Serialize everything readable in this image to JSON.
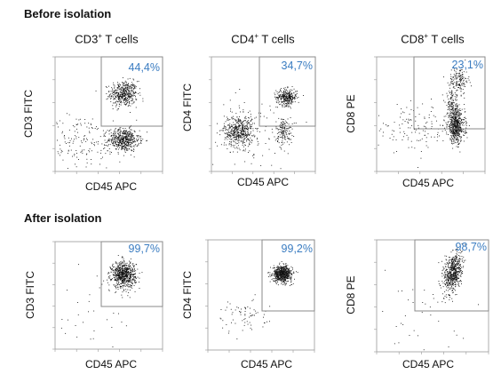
{
  "sections": {
    "before_title": "Before isolation",
    "after_title": "After isolation"
  },
  "columns": [
    {
      "base": "CD3",
      "sup": "+",
      "rest": " T cells"
    },
    {
      "base": "CD4",
      "sup": "+",
      "rest": " T cells"
    },
    {
      "base": "CD8",
      "sup": "+",
      "rest": " T cells"
    }
  ],
  "colors": {
    "dots": "#111111",
    "gate": "#8a8a8a",
    "percent": "#3a7cc1",
    "frame": "#999999"
  },
  "chart_data": [
    {
      "type": "scatter",
      "row": "before",
      "column": "CD3+ T cells",
      "xlabel": "CD45 APC",
      "ylabel": "CD3 FITC",
      "x_scale": "log",
      "y_scale": "log",
      "gate_percent": "44,4%",
      "populations": [
        {
          "x": 1500,
          "y": 2500,
          "spread_x": 0.32,
          "spread_y": 0.28,
          "count": 450
        },
        {
          "x": 1500,
          "y": 25,
          "spread_x": 0.36,
          "spread_y": 0.25,
          "count": 520
        },
        {
          "x": 12,
          "y": 20,
          "spread_x": 0.9,
          "spread_y": 0.6,
          "count": 160
        }
      ]
    },
    {
      "type": "scatter",
      "row": "before",
      "column": "CD4+ T cells",
      "xlabel": "CD45 APC",
      "ylabel": "CD4 FITC",
      "x_scale": "log",
      "y_scale": "log",
      "gate_percent": "34,7%",
      "populations": [
        {
          "x": 4000,
          "y": 1800,
          "spread_x": 0.25,
          "spread_y": 0.18,
          "count": 320
        },
        {
          "x": 20,
          "y": 60,
          "spread_x": 0.35,
          "spread_y": 0.35,
          "count": 480
        },
        {
          "x": 3000,
          "y": 60,
          "spread_x": 0.2,
          "spread_y": 0.3,
          "count": 150
        },
        {
          "x": 60,
          "y": 50,
          "spread_x": 1.0,
          "spread_y": 0.8,
          "count": 90
        }
      ]
    },
    {
      "type": "scatter",
      "row": "before",
      "column": "CD8+ T cells",
      "xlabel": "CD45 APC",
      "ylabel": "CD8 PE",
      "x_scale": "log",
      "y_scale": "log",
      "gate_percent": "23,1%",
      "populations": [
        {
          "x": 6000,
          "y": 10000,
          "spread_x": 0.22,
          "spread_y": 0.3,
          "count": 160
        },
        {
          "x": 4500,
          "y": 90,
          "spread_x": 0.2,
          "spread_y": 0.35,
          "count": 520
        },
        {
          "x": 3000,
          "y": 600,
          "spread_x": 0.15,
          "spread_y": 0.35,
          "count": 160
        },
        {
          "x": 50,
          "y": 80,
          "spread_x": 0.9,
          "spread_y": 0.5,
          "count": 130
        }
      ]
    },
    {
      "type": "scatter",
      "row": "after",
      "column": "CD3+ T cells",
      "xlabel": "CD45 APC",
      "ylabel": "CD3 FITC",
      "x_scale": "log",
      "y_scale": "log",
      "gate_percent": "99,7%",
      "populations": [
        {
          "x": 1500,
          "y": 3000,
          "spread_x": 0.28,
          "spread_y": 0.3,
          "count": 700
        },
        {
          "x": 50,
          "y": 30,
          "spread_x": 1.0,
          "spread_y": 0.9,
          "count": 30
        }
      ]
    },
    {
      "type": "scatter",
      "row": "after",
      "column": "CD4+ T cells",
      "xlabel": "CD45 APC",
      "ylabel": "CD4 FITC",
      "x_scale": "log",
      "y_scale": "log",
      "gate_percent": "99,2%",
      "populations": [
        {
          "x": 3000,
          "y": 3000,
          "spread_x": 0.22,
          "spread_y": 0.18,
          "count": 650
        },
        {
          "x": 40,
          "y": 40,
          "spread_x": 0.6,
          "spread_y": 0.4,
          "count": 70
        }
      ]
    },
    {
      "type": "scatter",
      "row": "after",
      "column": "CD8+ T cells",
      "xlabel": "CD45 APC",
      "ylabel": "CD8  PE",
      "x_scale": "log",
      "y_scale": "log",
      "gate_percent": "98,7%",
      "populations": [
        {
          "x": 2500,
          "y": 3500,
          "spread_x": 0.2,
          "spread_y": 0.45,
          "count": 600,
          "tilt": 0.8
        },
        {
          "x": 50,
          "y": 30,
          "spread_x": 1.0,
          "spread_y": 0.9,
          "count": 40
        }
      ]
    }
  ]
}
